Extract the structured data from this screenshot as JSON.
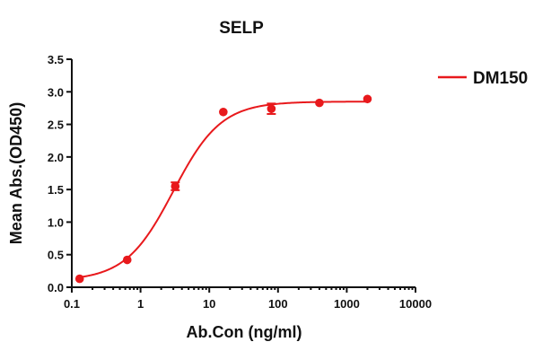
{
  "chart_data": {
    "type": "scatter",
    "title": "SELP",
    "xlabel": "Ab.Con (ng/ml)",
    "ylabel": "Mean Abs.(OD450)",
    "x_scale": "log",
    "xlim": [
      0.1,
      10000
    ],
    "ylim": [
      0,
      3.5
    ],
    "x_ticks": [
      "0.1",
      "1",
      "10",
      "100",
      "1000",
      "10000"
    ],
    "y_ticks": [
      "0.0",
      "0.5",
      "1.0",
      "1.5",
      "2.0",
      "2.5",
      "3.0",
      "3.5"
    ],
    "grid": false,
    "legend_position": "right",
    "color": "#e8191c",
    "series": [
      {
        "name": "DM150",
        "x": [
          0.13,
          0.64,
          3.2,
          16,
          80,
          400,
          2000
        ],
        "y": [
          0.13,
          0.42,
          1.55,
          2.69,
          2.74,
          2.83,
          2.89
        ],
        "error": [
          0,
          0,
          0.06,
          0,
          0.08,
          0,
          0
        ],
        "fit": "sigmoidal"
      }
    ]
  }
}
